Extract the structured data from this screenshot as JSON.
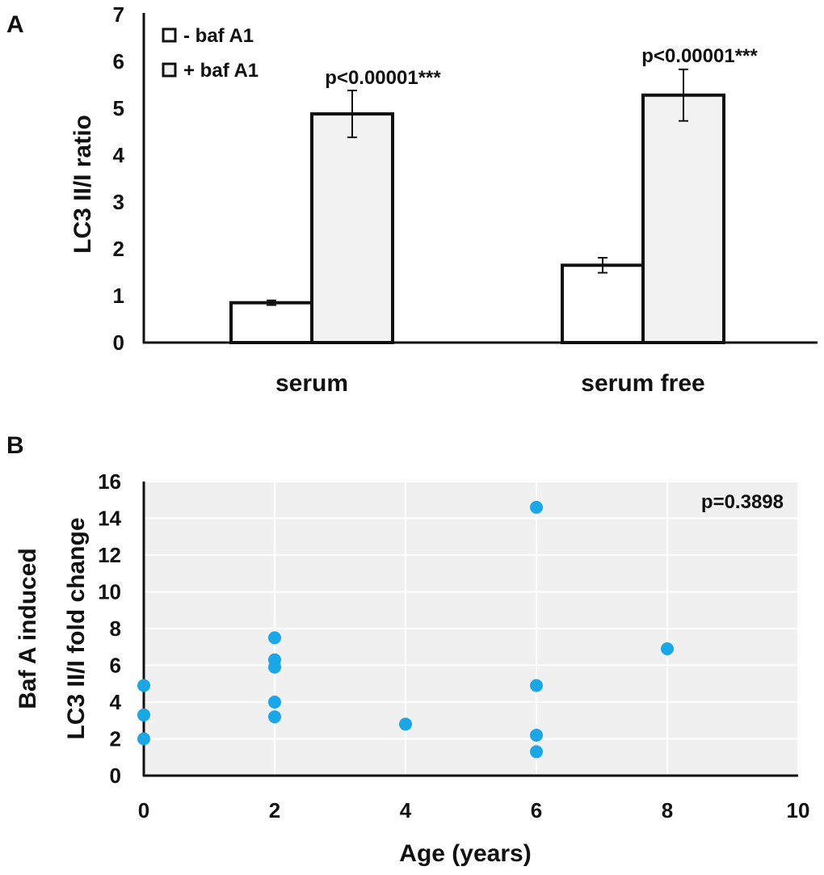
{
  "chart_data": [
    {
      "panel_label": "A",
      "type": "bar",
      "ylabel": "LC3 II/I ratio",
      "ylim": [
        0,
        7
      ],
      "yticks": [
        0,
        1,
        2,
        3,
        4,
        5,
        6,
        7
      ],
      "categories": [
        "serum",
        "serum free"
      ],
      "series": [
        {
          "name": "- baf A1",
          "values": [
            0.85,
            1.65
          ],
          "errors": [
            0.05,
            0.16
          ],
          "fill": "#ffffff"
        },
        {
          "name": "+ baf A1",
          "values": [
            4.88,
            5.28
          ],
          "errors": [
            0.5,
            0.55
          ],
          "fill": "#f2f2f2"
        }
      ],
      "annotations": [
        "p<0.00001***",
        "p<0.00001***"
      ],
      "legend_position": "top-left"
    },
    {
      "panel_label": "B",
      "type": "scatter",
      "title": "",
      "xlabel": "Age (years)",
      "ylabel_lines": [
        "Baf A induced",
        "LC3 II/I fold change"
      ],
      "xlim": [
        0,
        10
      ],
      "ylim": [
        0,
        16
      ],
      "xticks": [
        0,
        2,
        4,
        6,
        8,
        10
      ],
      "yticks": [
        0,
        2,
        4,
        6,
        8,
        10,
        12,
        14,
        16
      ],
      "grid": true,
      "point_color": "#1aa7e8",
      "plot_bg": "#f0f0f0",
      "annotation": "p=0.3898",
      "points": [
        {
          "x": 0,
          "y": 4.9
        },
        {
          "x": 0,
          "y": 3.3
        },
        {
          "x": 0,
          "y": 2.0
        },
        {
          "x": 2,
          "y": 7.5
        },
        {
          "x": 2,
          "y": 6.3
        },
        {
          "x": 2,
          "y": 5.9
        },
        {
          "x": 2,
          "y": 4.0
        },
        {
          "x": 2,
          "y": 3.2
        },
        {
          "x": 4,
          "y": 2.8
        },
        {
          "x": 6,
          "y": 14.6
        },
        {
          "x": 6,
          "y": 4.9
        },
        {
          "x": 6,
          "y": 2.2
        },
        {
          "x": 6,
          "y": 1.3
        },
        {
          "x": 8,
          "y": 6.9
        }
      ]
    }
  ]
}
